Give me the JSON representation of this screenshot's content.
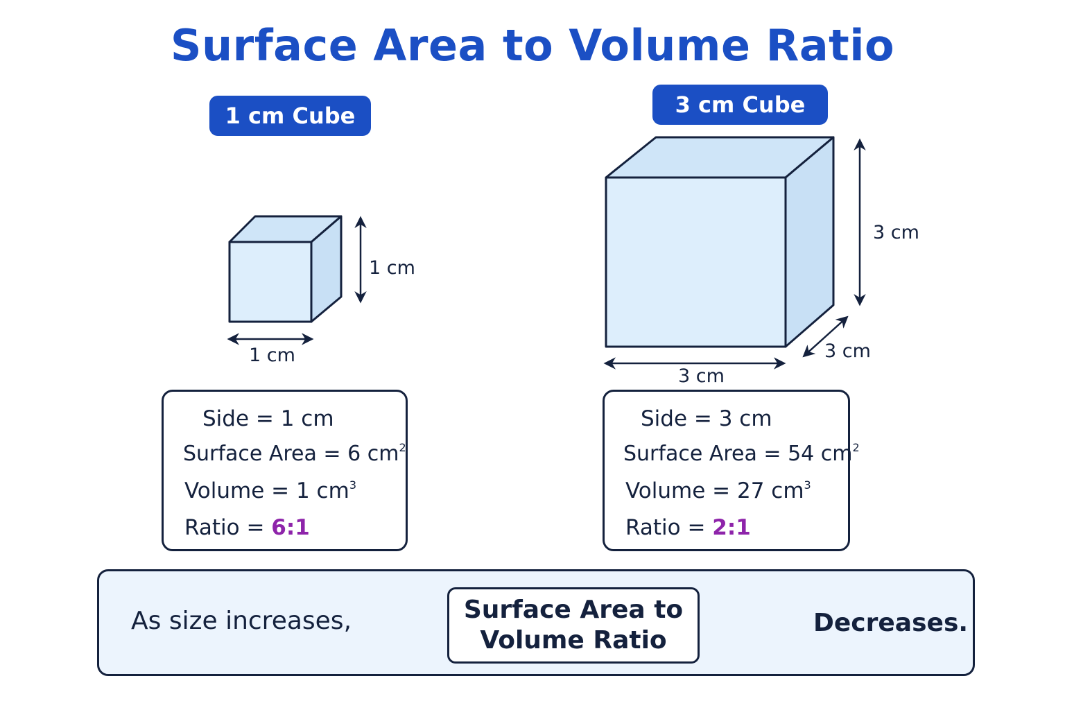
{
  "title": "Surface Area to Volume Ratio",
  "small_cube": {
    "badge": "1 cm Cube",
    "height_label": "1 cm",
    "width_label": "1 cm",
    "side_label": "Side",
    "side_value": "1 cm",
    "surface_area_label": "Surface Area",
    "surface_area_value": "6 cm",
    "surface_area_exp": "2",
    "volume_label": "Volume",
    "volume_value": "1 cm",
    "volume_exp": "3",
    "ratio_label": "Ratio",
    "ratio_value": "6:1"
  },
  "large_cube": {
    "badge": "3 cm Cube",
    "height_label": "3 cm",
    "width_label": "3 cm",
    "depth_label": "3 cm",
    "side_label": "Side",
    "side_value": "3 cm",
    "surface_area_label": "Surface Area",
    "surface_area_value": "54 cm",
    "surface_area_exp": "2",
    "volume_label": "Volume",
    "volume_value": "27 cm",
    "volume_exp": "3",
    "ratio_label": "Ratio",
    "ratio_value": "2:1"
  },
  "summary": {
    "left_text": "As size increases,",
    "center_line1": "Surface Area to",
    "center_line2": "Volume Ratio",
    "right_text": "Decreases."
  },
  "colors": {
    "title": "#1b4fc4",
    "badge": "#1b4fc4",
    "cube_fill": "#ddeefc",
    "outline": "#14213d",
    "ratio": "#8e24aa",
    "arrow": "#29a3f0",
    "summary_bg": "#ecf4fd"
  },
  "icons": [
    "arrow-right-icon"
  ]
}
